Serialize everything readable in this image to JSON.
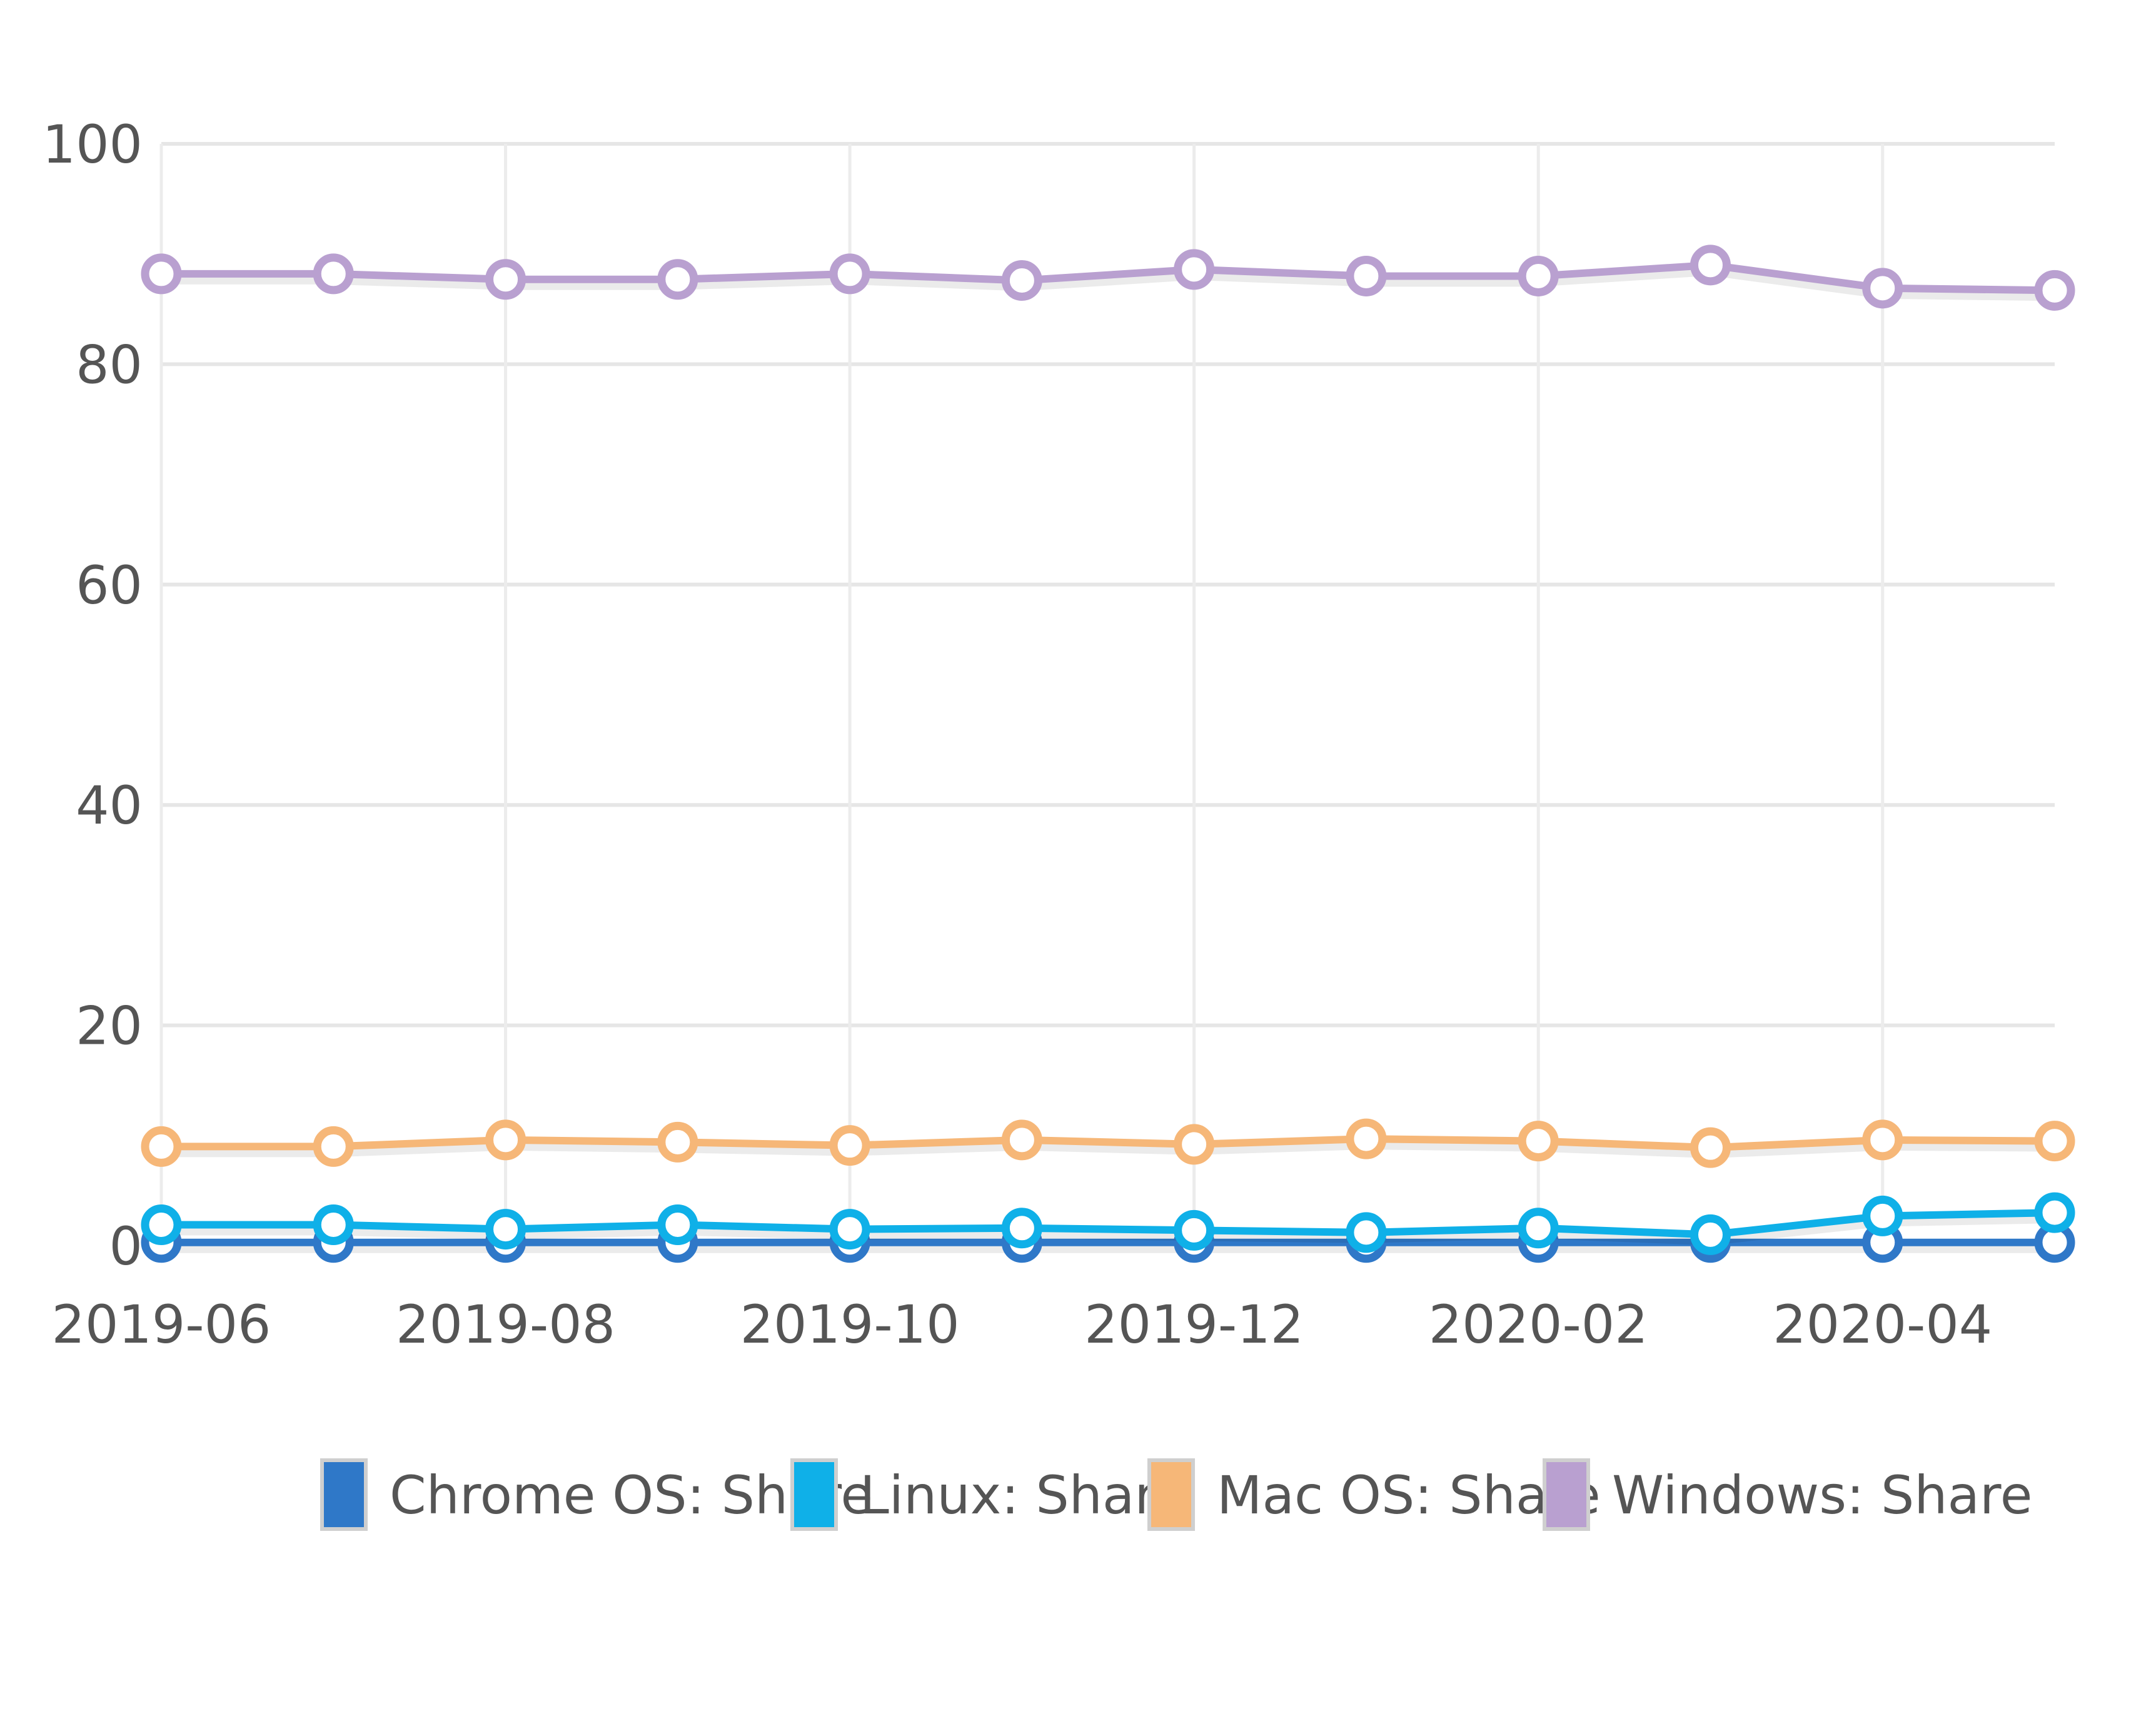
{
  "chart_data": {
    "type": "line",
    "title": "",
    "xlabel": "",
    "ylabel": "",
    "ylim": [
      0,
      100
    ],
    "y_ticks": [
      0,
      20,
      40,
      60,
      80,
      100
    ],
    "x": [
      "2019-06",
      "2019-07",
      "2019-08",
      "2019-09",
      "2019-10",
      "2019-11",
      "2019-12",
      "2020-01",
      "2020-02",
      "2020-03",
      "2020-04",
      "2020-05"
    ],
    "x_tick_labels": [
      "2019-06",
      "2019-08",
      "2019-10",
      "2019-12",
      "2020-02",
      "2020-04"
    ],
    "grid": true,
    "legend_position": "bottom",
    "series": [
      {
        "name": "Chrome OS: Share",
        "color": "#2f78c8",
        "values": [
          0.3,
          0.3,
          0.3,
          0.3,
          0.3,
          0.3,
          0.3,
          0.3,
          0.3,
          0.3,
          0.3,
          0.3
        ]
      },
      {
        "name": "Linux: Share",
        "color": "#0fb0e8",
        "values": [
          1.9,
          1.9,
          1.5,
          1.9,
          1.5,
          1.6,
          1.4,
          1.2,
          1.6,
          1.0,
          2.7,
          3.0
        ]
      },
      {
        "name": "Mac OS: Share",
        "color": "#f6b778",
        "values": [
          9.0,
          9.0,
          9.6,
          9.4,
          9.1,
          9.6,
          9.2,
          9.7,
          9.5,
          8.9,
          9.6,
          9.5
        ]
      },
      {
        "name": "Windows: Share",
        "color": "#b9a0d0",
        "values": [
          88.2,
          88.2,
          87.7,
          87.7,
          88.2,
          87.6,
          88.6,
          88.0,
          88.0,
          89.0,
          86.9,
          86.7
        ]
      }
    ]
  }
}
